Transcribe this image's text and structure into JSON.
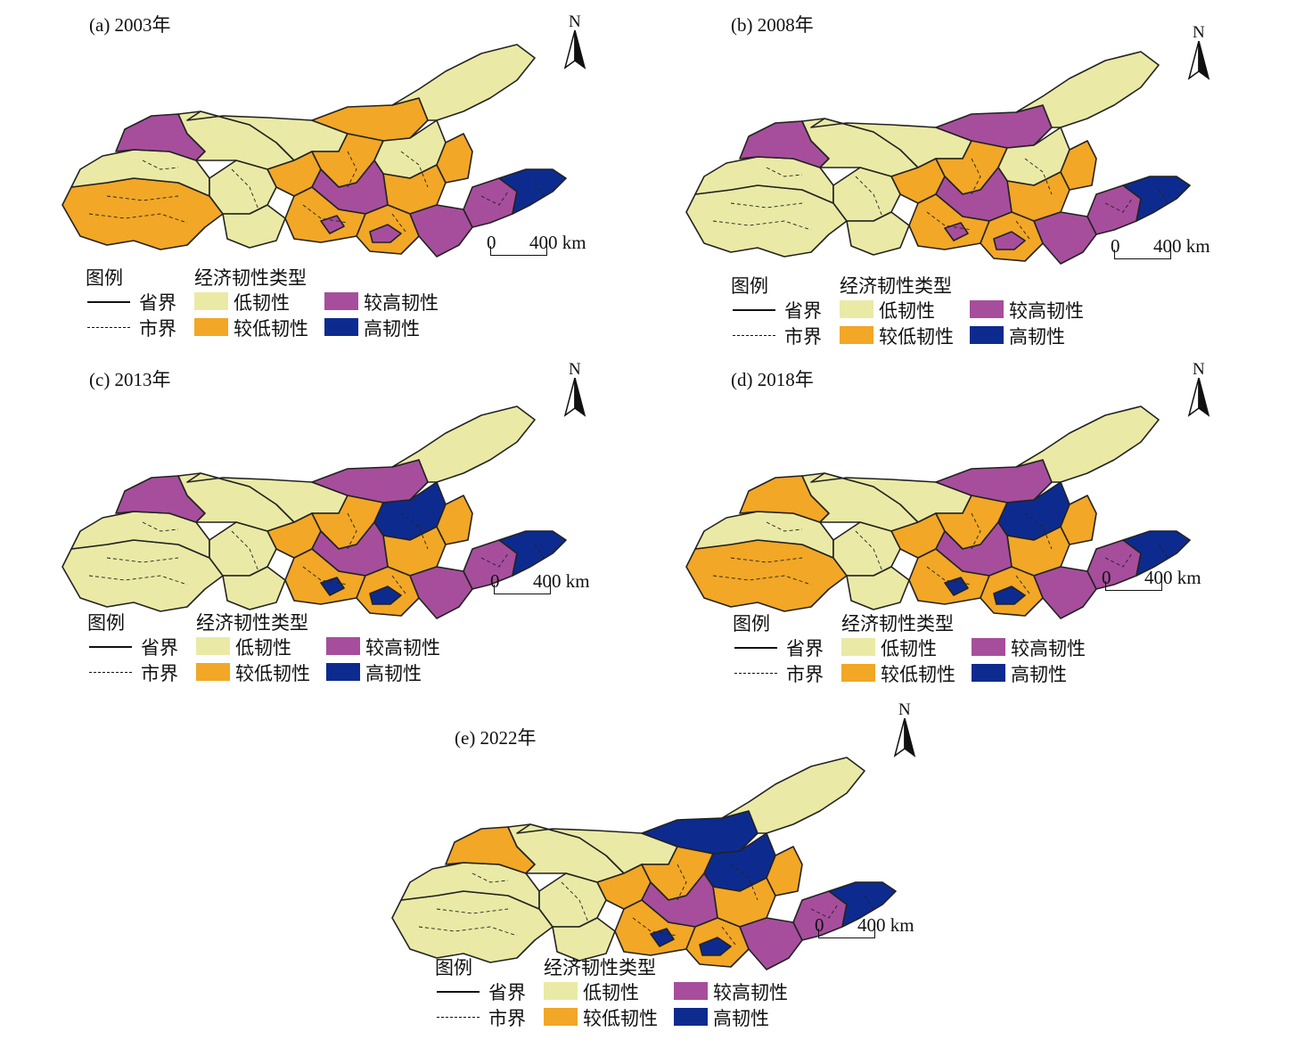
{
  "colors": {
    "low": "#EAEAA6",
    "lower": "#F2A726",
    "higher": "#A64E9C",
    "high": "#0D2B8F",
    "border": "#222222"
  },
  "legend": {
    "title": "图例",
    "type_title": "经济韧性类型",
    "province_border": "省界",
    "city_border": "市界",
    "low": "低韧性",
    "lower": "较低韧性",
    "higher": "较高韧性",
    "high": "高韧性"
  },
  "north": "N",
  "scale": {
    "zero": "0",
    "distance": "400 km"
  },
  "panels": [
    {
      "title": "(a) 2003年",
      "year": 2003,
      "west_region": "lower",
      "northwest_region": "higher",
      "inner_mongolia_east": "lower",
      "shanxi_north": "low",
      "core_high": false
    },
    {
      "title": "(b) 2008年",
      "year": 2008,
      "west_region": "low",
      "northwest_region": "higher",
      "inner_mongolia_east": "higher",
      "shanxi_north": "low",
      "core_high": false
    },
    {
      "title": "(c) 2013年",
      "year": 2013,
      "west_region": "low",
      "northwest_region": "higher",
      "inner_mongolia_east": "higher",
      "shanxi_north": "high",
      "core_high": true
    },
    {
      "title": "(d) 2018年",
      "year": 2018,
      "west_region": "lower",
      "northwest_region": "lower",
      "inner_mongolia_east": "higher",
      "shanxi_north": "high",
      "core_high": true
    },
    {
      "title": "(e) 2022年",
      "year": 2022,
      "west_region": "low",
      "northwest_region": "lower",
      "inner_mongolia_east": "high",
      "shanxi_north": "high",
      "core_high": true
    }
  ]
}
